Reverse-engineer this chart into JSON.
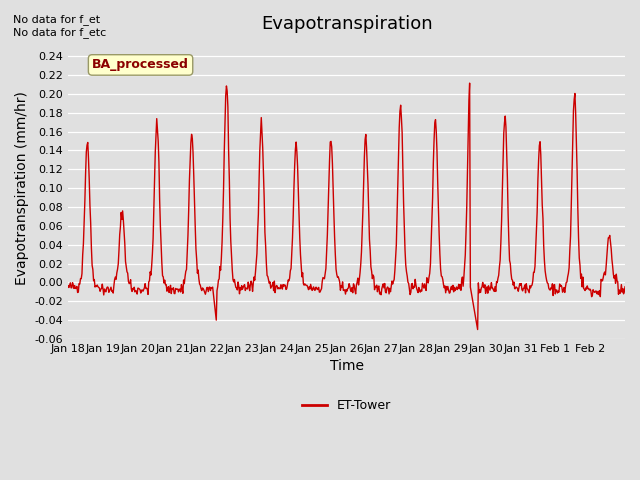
{
  "title": "Evapotranspiration",
  "xlabel": "Time",
  "ylabel": "Evapotranspiration (mm/hr)",
  "ylim": [
    -0.06,
    0.26
  ],
  "yticks": [
    -0.06,
    -0.04,
    -0.02,
    0.0,
    0.02,
    0.04,
    0.06,
    0.08,
    0.1,
    0.12,
    0.14,
    0.16,
    0.18,
    0.2,
    0.22,
    0.24
  ],
  "line_color": "#cc0000",
  "line_width": 1.0,
  "background_color": "#e0e0e0",
  "plot_bg_color": "#e0e0e0",
  "text_top_left": "No data for f_et\nNo data for f_etc",
  "legend_label": "ET-Tower",
  "legend_box_label": "BA_processed",
  "legend_box_color": "#ffffcc",
  "legend_box_edge_color": "#999966",
  "xtick_labels": [
    "Jan 18",
    "Jan 19",
    "Jan 20",
    "Jan 21",
    "Jan 22",
    "Jan 23",
    "Jan 24",
    "Jan 25",
    "Jan 26",
    "Jan 27",
    "Jan 28",
    "Jan 29",
    "Jan 30",
    "Jan 31",
    "Feb 1",
    "Feb 2"
  ],
  "title_fontsize": 13,
  "axis_fontsize": 10,
  "tick_fontsize": 8,
  "n_days": 16,
  "n_per_day": 48,
  "day_peaks": [
    0.15,
    0.075,
    0.17,
    0.16,
    0.21,
    0.17,
    0.145,
    0.15,
    0.155,
    0.19,
    0.175,
    0.215,
    0.175,
    0.145,
    0.2,
    0.05
  ],
  "night_vals": [
    -0.005,
    -0.008,
    -0.007,
    -0.008,
    -0.006,
    -0.005,
    -0.005,
    -0.006,
    -0.007,
    -0.006,
    -0.006,
    -0.005,
    -0.007,
    -0.006,
    -0.007,
    -0.01
  ]
}
